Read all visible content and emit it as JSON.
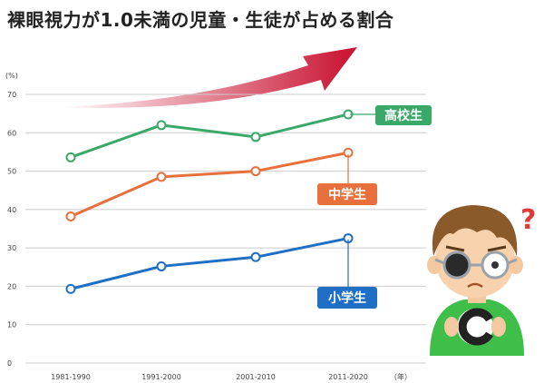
{
  "title": "裸眼視力が1.0未満の児童・生徒が占める割合",
  "chart_data": {
    "type": "line",
    "categories": [
      "1981-1990",
      "1991-2000",
      "2001-2010",
      "2011-2020"
    ],
    "x_unit": "（年）",
    "y_unit": "(%)",
    "ylim": [
      0,
      70
    ],
    "yticks": [
      0,
      10,
      20,
      30,
      40,
      50,
      60,
      70
    ],
    "grid": true,
    "series": [
      {
        "name": "高校生",
        "values": [
          53.6,
          62.0,
          58.9,
          64.8
        ],
        "color": "#3aa868"
      },
      {
        "name": "中学生",
        "values": [
          38.2,
          48.5,
          50.0,
          54.8
        ],
        "color": "#e8703c"
      },
      {
        "name": "小学生",
        "values": [
          19.3,
          25.2,
          27.6,
          32.5
        ],
        "color": "#1f6fc4"
      }
    ]
  },
  "colors": {
    "arrow": "#c8102e",
    "axis": "#cccccc"
  },
  "illustration": "child-with-glasses-thinking"
}
